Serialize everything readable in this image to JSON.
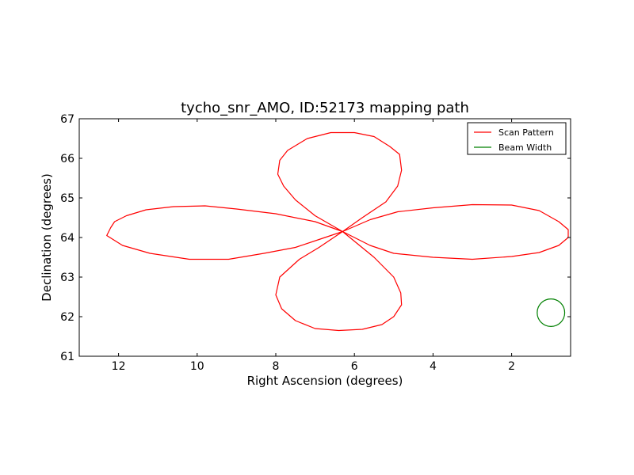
{
  "chart_data": {
    "type": "line",
    "title": "tycho_snr_AMO, ID:52173 mapping path",
    "xlabel": "Right Ascension (degrees)",
    "ylabel": "Declination (degrees)",
    "xlim": [
      13.0,
      0.5
    ],
    "ylim": [
      61,
      67
    ],
    "xticks": [
      12,
      10,
      8,
      6,
      4,
      2
    ],
    "xtick_labels": [
      "12",
      "10",
      "8",
      "6",
      "4",
      "2"
    ],
    "yticks": [
      61,
      62,
      63,
      64,
      65,
      66,
      67
    ],
    "ytick_labels": [
      "61",
      "62",
      "63",
      "64",
      "65",
      "66",
      "67"
    ],
    "grid": false,
    "legend": {
      "position": "top-right",
      "entries": [
        {
          "label": "Scan Pattern",
          "color": "#ff0000"
        },
        {
          "label": "Beam Width",
          "color": "#008000"
        }
      ]
    },
    "series": [
      {
        "name": "Scan Pattern",
        "color": "#ff0000",
        "x": [
          6.3,
          5.6,
          4.9,
          4.0,
          3.0,
          2.0,
          1.3,
          0.8,
          0.56,
          0.56,
          0.8,
          1.3,
          2.0,
          3.0,
          4.0,
          5.0,
          5.6,
          6.3,
          5.8,
          5.2,
          4.9,
          4.8,
          4.85,
          5.1,
          5.5,
          6.0,
          6.6,
          7.2,
          7.7,
          7.9,
          7.95,
          7.8,
          7.5,
          7.0,
          6.3,
          7.0,
          8.0,
          9.0,
          9.8,
          10.6,
          11.3,
          11.8,
          12.1,
          12.2,
          12.25,
          12.3,
          11.9,
          11.2,
          10.2,
          9.2,
          8.3,
          7.5,
          6.9,
          6.3,
          6.9,
          7.4,
          7.9,
          8.0,
          7.85,
          7.5,
          7.0,
          6.4,
          5.8,
          5.3,
          5.0,
          4.8,
          4.82,
          5.0,
          5.5,
          6.3
        ],
        "y": [
          64.15,
          64.45,
          64.65,
          64.75,
          64.83,
          64.82,
          64.68,
          64.4,
          64.2,
          64.0,
          63.8,
          63.62,
          63.52,
          63.45,
          63.5,
          63.6,
          63.8,
          64.15,
          64.5,
          64.9,
          65.3,
          65.7,
          66.1,
          66.3,
          66.55,
          66.65,
          66.65,
          66.5,
          66.2,
          65.95,
          65.6,
          65.3,
          64.95,
          64.55,
          64.15,
          64.4,
          64.6,
          64.72,
          64.8,
          64.78,
          64.7,
          64.55,
          64.4,
          64.25,
          64.15,
          64.05,
          63.8,
          63.6,
          63.45,
          63.45,
          63.6,
          63.75,
          63.95,
          64.15,
          63.75,
          63.45,
          63.0,
          62.55,
          62.2,
          61.9,
          61.7,
          61.65,
          61.68,
          61.8,
          62.0,
          62.3,
          62.6,
          63.0,
          63.5,
          64.15
        ]
      },
      {
        "name": "Beam Width",
        "color": "#008000",
        "center": [
          1.0,
          62.1
        ],
        "radius_deg": 0.35
      }
    ]
  }
}
